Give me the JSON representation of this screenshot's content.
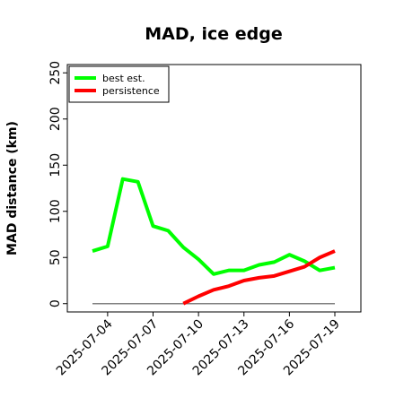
{
  "chart_data": {
    "type": "line",
    "title": "MAD, ice edge",
    "ylabel": "MAD distance (km)",
    "x": [
      "2025-07-03",
      "2025-07-04",
      "2025-07-05",
      "2025-07-06",
      "2025-07-07",
      "2025-07-08",
      "2025-07-09",
      "2025-07-10",
      "2025-07-11",
      "2025-07-12",
      "2025-07-13",
      "2025-07-14",
      "2025-07-15",
      "2025-07-16",
      "2025-07-17",
      "2025-07-18",
      "2025-07-19"
    ],
    "series": [
      {
        "name": "best est.",
        "color": "#00ff00",
        "values": [
          57,
          62,
          135,
          132,
          84,
          79,
          61,
          48,
          32,
          36,
          36,
          42,
          45,
          53,
          46,
          36,
          39
        ]
      },
      {
        "name": "persistence",
        "color": "#ff0000",
        "values": [
          null,
          null,
          null,
          null,
          null,
          null,
          0,
          8,
          15,
          19,
          25,
          28,
          30,
          35,
          40,
          50,
          57
        ]
      }
    ],
    "hline": 0,
    "ylim": [
      -9,
      259
    ],
    "yticks": [
      0,
      50,
      100,
      150,
      200,
      250
    ],
    "xticks": [
      "2025-07-04",
      "2025-07-07",
      "2025-07-10",
      "2025-07-13",
      "2025-07-16",
      "2025-07-19"
    ],
    "legend": "upper left"
  }
}
